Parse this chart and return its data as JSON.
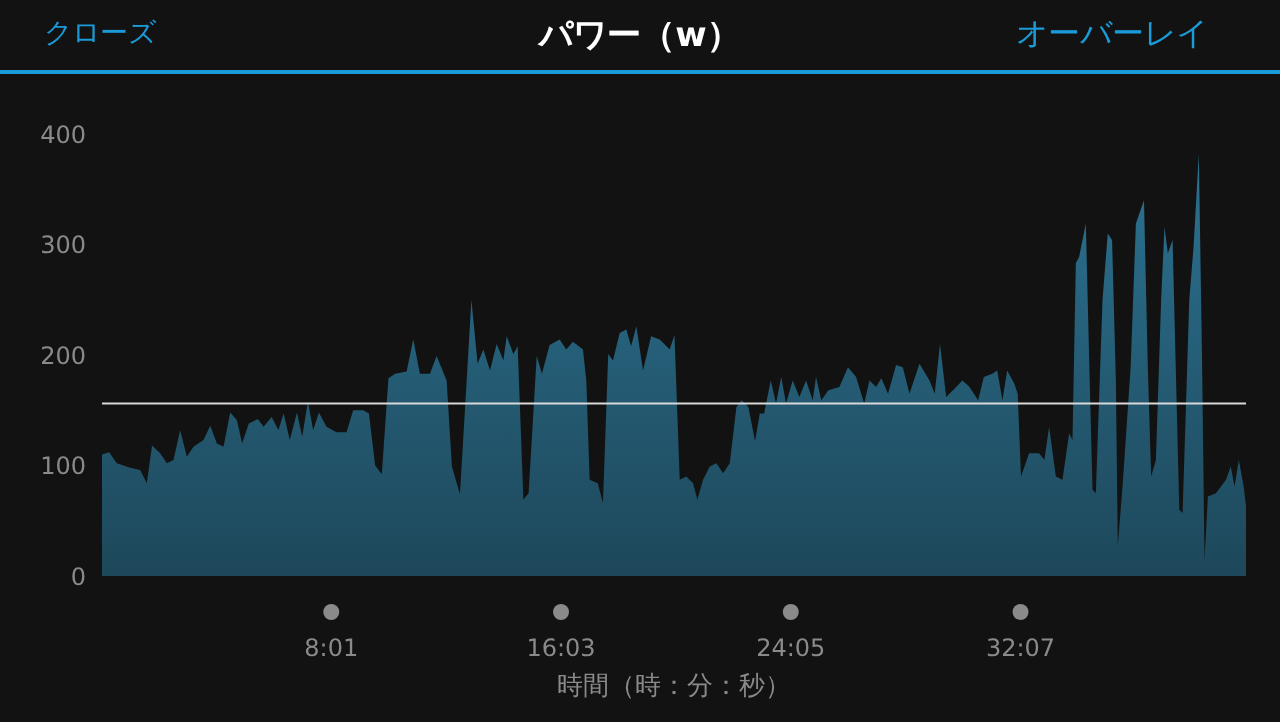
{
  "chart_data": {
    "type": "area",
    "title": "パワー（w）",
    "xlabel": "時間（時：分：秒）",
    "annotations": [
      "クローズ",
      "オーバーレイ"
    ],
    "color": "#3db2e6",
    "x": [
      0,
      15,
      31,
      45,
      59,
      80,
      94,
      105,
      122,
      136,
      150,
      164,
      178,
      192,
      213,
      227,
      241,
      255,
      269,
      283,
      294,
      308,
      327,
      339,
      356,
      370,
      381,
      394,
      409,
      420,
      432,
      443,
      455,
      471,
      492,
      513,
      527,
      548,
      560,
      573,
      587,
      601,
      615,
      639,
      653,
      667,
      688,
      702,
      723,
      734,
      751,
      775,
      788,
      800,
      814,
      828,
      842,
      849,
      863,
      872,
      884,
      895,
      912,
      923,
      939,
      960,
      974,
      988,
      1009,
      1016,
      1023,
      1040,
      1051,
      1062,
      1072,
      1086,
      1100,
      1110,
      1121,
      1135,
      1152,
      1170,
      1191,
      1201,
      1212,
      1226,
      1240,
      1249,
      1261,
      1275,
      1289,
      1303,
      1317,
      1331,
      1342,
      1356,
      1370,
      1380,
      1389,
      1403,
      1414,
      1425,
      1435,
      1449,
      1463,
      1477,
      1491,
      1498,
      1509,
      1524,
      1547,
      1565,
      1582,
      1599,
      1610,
      1624,
      1635,
      1649,
      1666,
      1680,
      1694,
      1715,
      1736,
      1747,
      1758,
      1771,
      1792,
      1805,
      1820,
      1838,
      1850,
      1868,
      1878,
      1889,
      1899,
      1914,
      1921,
      1928,
      1945,
      1966,
      1977,
      1987,
      2001,
      2015,
      2029,
      2036,
      2043,
      2050,
      2064,
      2071,
      2078,
      2085,
      2099,
      2110,
      2119,
      2127,
      2131,
      2141,
      2158,
      2169,
      2186,
      2194,
      2201,
      2211,
      2222,
      2229,
      2236,
      2246,
      2260,
      2267,
      2281,
      2290,
      2301,
      2308,
      2313,
      2320,
      2337,
      2358,
      2368,
      2376,
      2385,
      2395,
      2400
    ],
    "values": [
      110,
      112,
      102,
      100,
      98,
      96,
      84,
      118,
      111,
      102,
      105,
      132,
      108,
      117,
      123,
      136,
      120,
      117,
      148,
      141,
      120,
      138,
      142,
      135,
      144,
      132,
      147,
      123,
      148,
      126,
      158,
      132,
      148,
      135,
      130,
      130,
      150,
      150,
      147,
      100,
      92,
      179,
      183,
      185,
      214,
      183,
      183,
      199,
      177,
      99,
      74,
      250,
      192,
      205,
      186,
      210,
      195,
      217,
      201,
      208,
      69,
      75,
      199,
      183,
      209,
      214,
      205,
      212,
      205,
      177,
      87,
      84,
      66,
      201,
      195,
      220,
      223,
      208,
      226,
      186,
      217,
      214,
      205,
      218,
      87,
      90,
      84,
      69,
      87,
      99,
      102,
      93,
      102,
      153,
      159,
      153,
      122,
      147,
      147,
      177,
      156,
      180,
      156,
      177,
      162,
      177,
      159,
      180,
      159,
      168,
      171,
      189,
      180,
      156,
      177,
      171,
      179,
      165,
      191,
      189,
      165,
      192,
      177,
      165,
      210,
      162,
      171,
      177,
      171,
      159,
      180,
      183,
      186,
      159,
      186,
      174,
      165,
      90,
      111,
      111,
      105,
      135,
      90,
      87,
      129,
      123,
      283,
      289,
      319,
      195,
      78,
      75,
      250,
      310,
      304,
      177,
      27,
      81,
      189,
      319,
      340,
      189,
      90,
      105,
      250,
      316,
      292,
      304,
      60,
      57,
      250,
      298,
      382,
      189,
      14,
      72,
      75,
      87,
      99,
      81,
      105,
      81,
      63
    ],
    "xlim": [
      0,
      2400
    ],
    "xticks": [
      {
        "value": 481,
        "label": "8:01"
      },
      {
        "value": 963,
        "label": "16:03"
      },
      {
        "value": 1445,
        "label": "24:05"
      },
      {
        "value": 1927,
        "label": "32:07"
      }
    ],
    "ylim": [
      0,
      400
    ],
    "yticks": [
      0,
      100,
      200,
      300,
      400
    ],
    "ref_lines": [
      {
        "axis": "y",
        "value": 156,
        "color": "#d8d8d8"
      }
    ],
    "grid": false,
    "legend": false
  }
}
